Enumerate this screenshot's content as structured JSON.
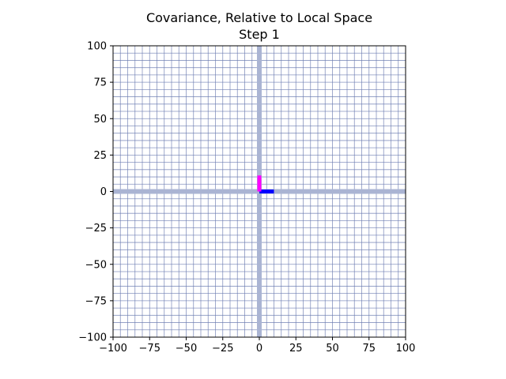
{
  "chart_data": {
    "type": "line",
    "title": "Covariance, Relative to Local Space",
    "subtitle": "Step 1",
    "xlabel": "",
    "ylabel": "",
    "xlim": [
      -100,
      100
    ],
    "ylim": [
      -100,
      100
    ],
    "xticks": [
      -100,
      -75,
      -50,
      -25,
      0,
      25,
      50,
      75,
      100
    ],
    "yticks": [
      -100,
      -75,
      -50,
      -25,
      0,
      25,
      50,
      75,
      100
    ],
    "x_tick_labels": [
      "−100",
      "−75",
      "−50",
      "−25",
      "0",
      "25",
      "50",
      "75",
      "100"
    ],
    "y_tick_labels": [
      "−100",
      "−75",
      "−50",
      "−25",
      "0",
      "25",
      "50",
      "75",
      "100"
    ],
    "grid": true,
    "grid_spacing": 5,
    "grid_color": "#6a7bb0",
    "axis_line_color": "#aab4d3",
    "series": [
      {
        "x": [
          0,
          10
        ],
        "y": [
          0,
          0
        ],
        "color": "#0000ff"
      },
      {
        "x": [
          0,
          0
        ],
        "y": [
          0,
          11
        ],
        "color": "#ff00ff"
      }
    ]
  }
}
